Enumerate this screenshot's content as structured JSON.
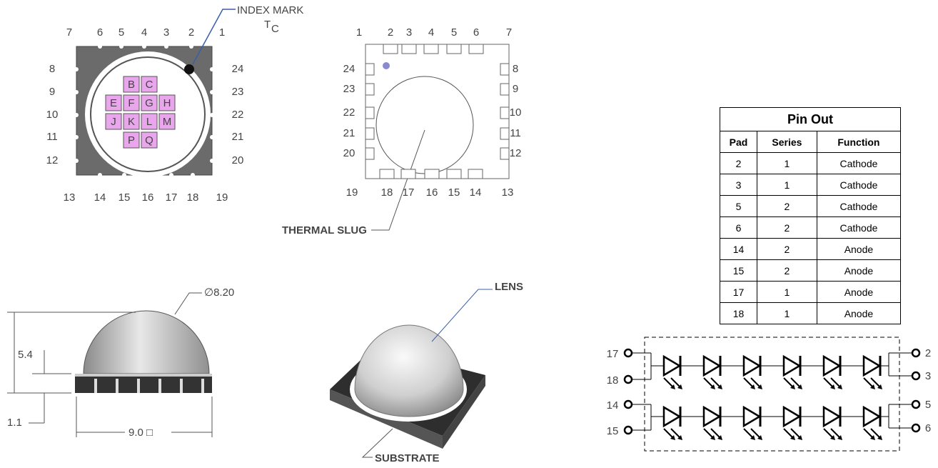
{
  "top_view": {
    "index_mark": "INDEX MARK",
    "tc": "T",
    "tc_sub": "C",
    "pins_top": [
      "7",
      "6",
      "5",
      "4",
      "3",
      "2",
      "1"
    ],
    "pins_left": [
      "8",
      "9",
      "10",
      "11",
      "12"
    ],
    "pins_right": [
      "24",
      "23",
      "22",
      "21",
      "20"
    ],
    "pins_bottom": [
      "13",
      "14",
      "15",
      "16",
      "17",
      "18",
      "19"
    ],
    "die_rows": [
      [
        "B",
        "C"
      ],
      [
        "E",
        "F",
        "G",
        "H"
      ],
      [
        "J",
        "K",
        "L",
        "M"
      ],
      [
        "P",
        "Q"
      ]
    ]
  },
  "bottom_view": {
    "thermal_slug": "THERMAL SLUG",
    "pins_top": [
      "1",
      "2",
      "3",
      "4",
      "5",
      "6",
      "7"
    ],
    "pins_left": [
      "24",
      "23",
      "22",
      "21",
      "20"
    ],
    "pins_right": [
      "8",
      "9",
      "10",
      "11",
      "12"
    ],
    "pins_bottom": [
      "19",
      "18",
      "17",
      "16",
      "15",
      "14",
      "13"
    ]
  },
  "side_view": {
    "diameter": "∅8.20",
    "height": "5.4",
    "substrate_height": "1.1",
    "width": "9.0 □"
  },
  "iso_view": {
    "lens": "LENS",
    "substrate": "SUBSTRATE"
  },
  "table": {
    "title": "Pin Out",
    "columns": [
      "Pad",
      "Series",
      "Function"
    ],
    "rows": [
      [
        "2",
        "1",
        "Cathode"
      ],
      [
        "3",
        "1",
        "Cathode"
      ],
      [
        "5",
        "2",
        "Cathode"
      ],
      [
        "6",
        "2",
        "Cathode"
      ],
      [
        "14",
        "2",
        "Anode"
      ],
      [
        "15",
        "2",
        "Anode"
      ],
      [
        "17",
        "1",
        "Anode"
      ],
      [
        "18",
        "1",
        "Anode"
      ]
    ]
  },
  "circuit": {
    "left_pins": [
      "17",
      "18",
      "14",
      "15"
    ],
    "right_pins": [
      "2",
      "3",
      "5",
      "6"
    ]
  }
}
